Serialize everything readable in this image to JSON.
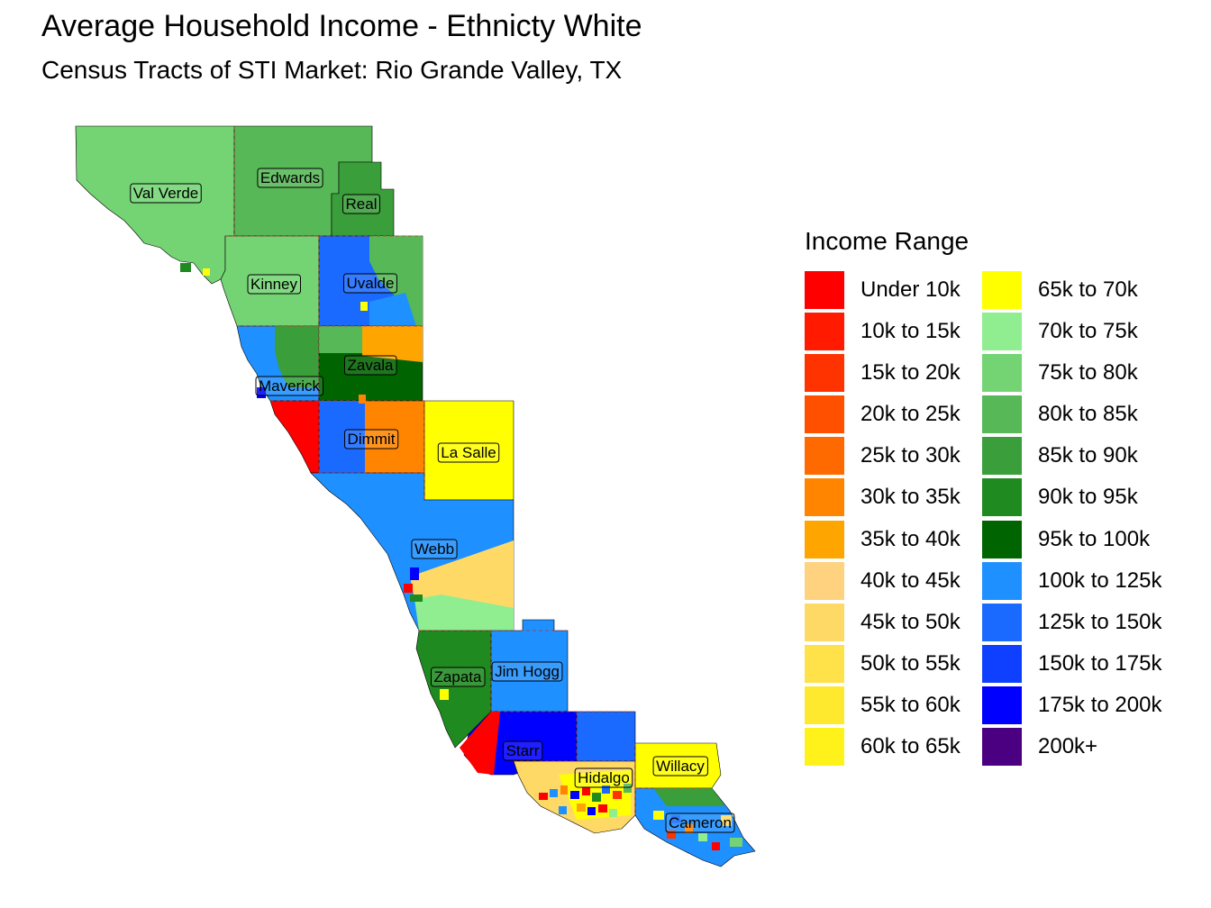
{
  "title": "Average Household Income - Ethnicty White",
  "subtitle": "Census Tracts of STI Market: Rio Grande Valley, TX",
  "legend": {
    "title": "Income Range",
    "items": [
      {
        "label": "Under 10k",
        "color": "#FF0000"
      },
      {
        "label": "10k to 15k",
        "color": "#FF1A00"
      },
      {
        "label": "15k to 20k",
        "color": "#FF3300"
      },
      {
        "label": "20k to 25k",
        "color": "#FF5000"
      },
      {
        "label": "25k to 30k",
        "color": "#FF6A00"
      },
      {
        "label": "30k to 35k",
        "color": "#FF8400"
      },
      {
        "label": "35k to 40k",
        "color": "#FFA500"
      },
      {
        "label": "40k to 45k",
        "color": "#FFD27F"
      },
      {
        "label": "45k to 50k",
        "color": "#FFD966"
      },
      {
        "label": "50k to 55k",
        "color": "#FFE14A"
      },
      {
        "label": "55k to 60k",
        "color": "#FFE92E"
      },
      {
        "label": "60k to 65k",
        "color": "#FFF21A"
      },
      {
        "label": "65k to 70k",
        "color": "#FFFF00"
      },
      {
        "label": "70k to 75k",
        "color": "#90EE90"
      },
      {
        "label": "75k to 80k",
        "color": "#74D474"
      },
      {
        "label": "80k to 85k",
        "color": "#56B856"
      },
      {
        "label": "85k to 90k",
        "color": "#3A9E3A"
      },
      {
        "label": "90k to 95k",
        "color": "#1F8A1F"
      },
      {
        "label": "95k to 100k",
        "color": "#006400"
      },
      {
        "label": "100k to 125k",
        "color": "#1E90FF"
      },
      {
        "label": "125k to 150k",
        "color": "#1A6AFF"
      },
      {
        "label": "150k to 175k",
        "color": "#1040FF"
      },
      {
        "label": "175k to 200k",
        "color": "#0000FF"
      },
      {
        "label": "200k+",
        "color": "#4B0082"
      }
    ]
  },
  "counties": [
    {
      "name": "Val Verde",
      "fill": "#74D474"
    },
    {
      "name": "Edwards",
      "fill": "#56B856"
    },
    {
      "name": "Real",
      "fill": "#3A9E3A"
    },
    {
      "name": "Kinney",
      "fill": "#74D474"
    },
    {
      "name": "Uvalde",
      "fill": "#1A6AFF"
    },
    {
      "name": "Zavala",
      "fill": "#006400"
    },
    {
      "name": "Maverick",
      "fill": "#1E90FF"
    },
    {
      "name": "Dimmit",
      "fill": "#FF8400"
    },
    {
      "name": "La Salle",
      "fill": "#FFFF00"
    },
    {
      "name": "Webb",
      "fill": "#1E90FF"
    },
    {
      "name": "Zapata",
      "fill": "#1F8A1F"
    },
    {
      "name": "Jim Hogg",
      "fill": "#1E90FF"
    },
    {
      "name": "Starr",
      "fill": "#0000FF"
    },
    {
      "name": "Hidalgo",
      "fill": "#FFD966"
    },
    {
      "name": "Willacy",
      "fill": "#FFFF00"
    },
    {
      "name": "Cameron",
      "fill": "#1E90FF"
    }
  ]
}
